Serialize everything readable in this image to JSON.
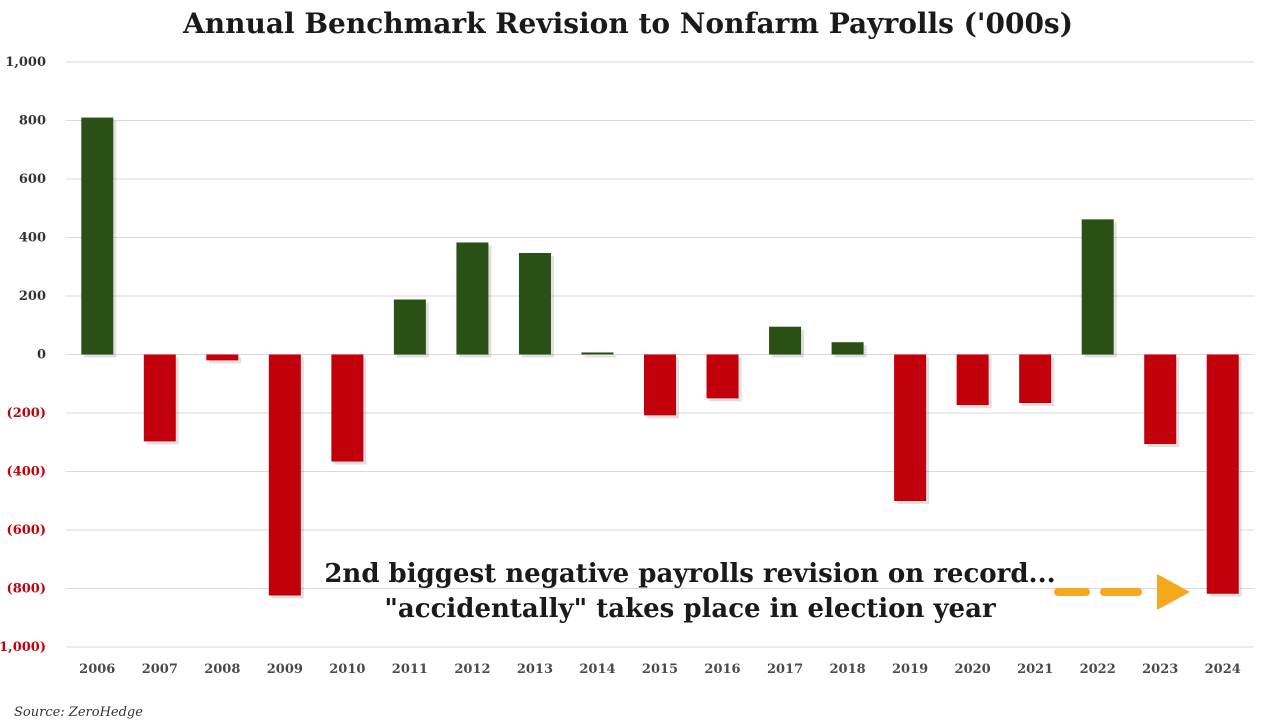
{
  "chart_data": {
    "type": "bar",
    "title": "Annual Benchmark Revision to Nonfarm Payrolls ('000s)",
    "xlabel": "",
    "ylabel": "",
    "ylim": [
      -1000,
      1000
    ],
    "yticks": [
      1000,
      800,
      600,
      400,
      200,
      0,
      -200,
      -400,
      -600,
      -800,
      -1000
    ],
    "ytick_labels": [
      "1,000",
      "800",
      "600",
      "400",
      "200",
      "0",
      "(200)",
      "(400)",
      "(600)",
      "(800)",
      "(1,000)"
    ],
    "categories": [
      "2006",
      "2007",
      "2008",
      "2009",
      "2010",
      "2011",
      "2012",
      "2013",
      "2014",
      "2015",
      "2016",
      "2017",
      "2018",
      "2019",
      "2020",
      "2021",
      "2022",
      "2023",
      "2024"
    ],
    "values": [
      810,
      -297,
      -20,
      -824,
      -366,
      188,
      383,
      347,
      7,
      -208,
      -150,
      95,
      42,
      -501,
      -173,
      -166,
      462,
      -306,
      -818
    ],
    "colors": {
      "positive": "#2b5016",
      "negative": "#c2000b",
      "positive_tick": "#333333",
      "negative_tick": "#c2000b",
      "arrow": "#f5a81c"
    },
    "grid": true,
    "annotation": {
      "lines": [
        "2nd  biggest negative payrolls revision on record...",
        "\"accidentally\" takes place in election year"
      ]
    },
    "source": "Source: ZeroHedge"
  }
}
